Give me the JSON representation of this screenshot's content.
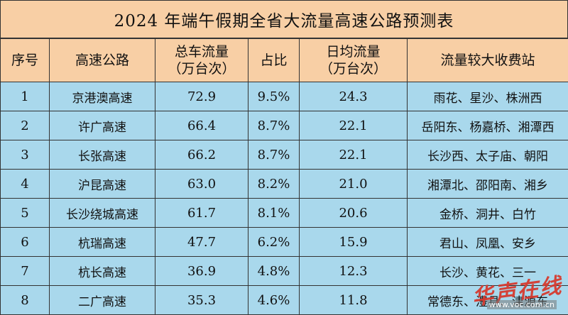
{
  "title": "2024 年端午假期全省大流量高速公路预测表",
  "columns": {
    "index": "序号",
    "road": "高速公路",
    "total_line1": "总车流量",
    "total_line2": "（万台次）",
    "share": "占比",
    "daily_line1": "日均流量",
    "daily_line2": "（万台次）",
    "stations": "流量较大收费站"
  },
  "rows": [
    {
      "index": "1",
      "road": "京港澳高速",
      "total": "72.9",
      "share": "9.5%",
      "daily": "24.3",
      "stations": "雨花、星沙、株洲西"
    },
    {
      "index": "2",
      "road": "许广高速",
      "total": "66.4",
      "share": "8.7%",
      "daily": "22.1",
      "stations": "岳阳东、杨嘉桥、湘潭西"
    },
    {
      "index": "3",
      "road": "长张高速",
      "total": "66.2",
      "share": "8.7%",
      "daily": "22.1",
      "stations": "长沙西、太子庙、朝阳"
    },
    {
      "index": "4",
      "road": "沪昆高速",
      "total": "63.0",
      "share": "8.2%",
      "daily": "21.0",
      "stations": "湘潭北、邵阳南、湘乡"
    },
    {
      "index": "5",
      "road": "长沙绕城高速",
      "total": "61.7",
      "share": "8.1%",
      "daily": "20.6",
      "stations": "金桥、洞井、白竹"
    },
    {
      "index": "6",
      "road": "杭瑞高速",
      "total": "47.7",
      "share": "6.2%",
      "daily": "15.9",
      "stations": "君山、凤凰、安乡"
    },
    {
      "index": "7",
      "road": "杭长高速",
      "total": "36.9",
      "share": "4.8%",
      "daily": "12.3",
      "stations": "长沙、黄花、三一"
    },
    {
      "index": "8",
      "road": "二广高速",
      "total": "35.3",
      "share": "4.6%",
      "daily": "11.8",
      "stations": "常德东、澧县、津源东"
    }
  ],
  "watermark": {
    "logo_text": "华声在线",
    "url": "www.voc.com.cn"
  },
  "colors": {
    "header_bg": "#f8cfa5",
    "row_bg": "#a9d8ec",
    "watermark": "#d63a2f"
  }
}
